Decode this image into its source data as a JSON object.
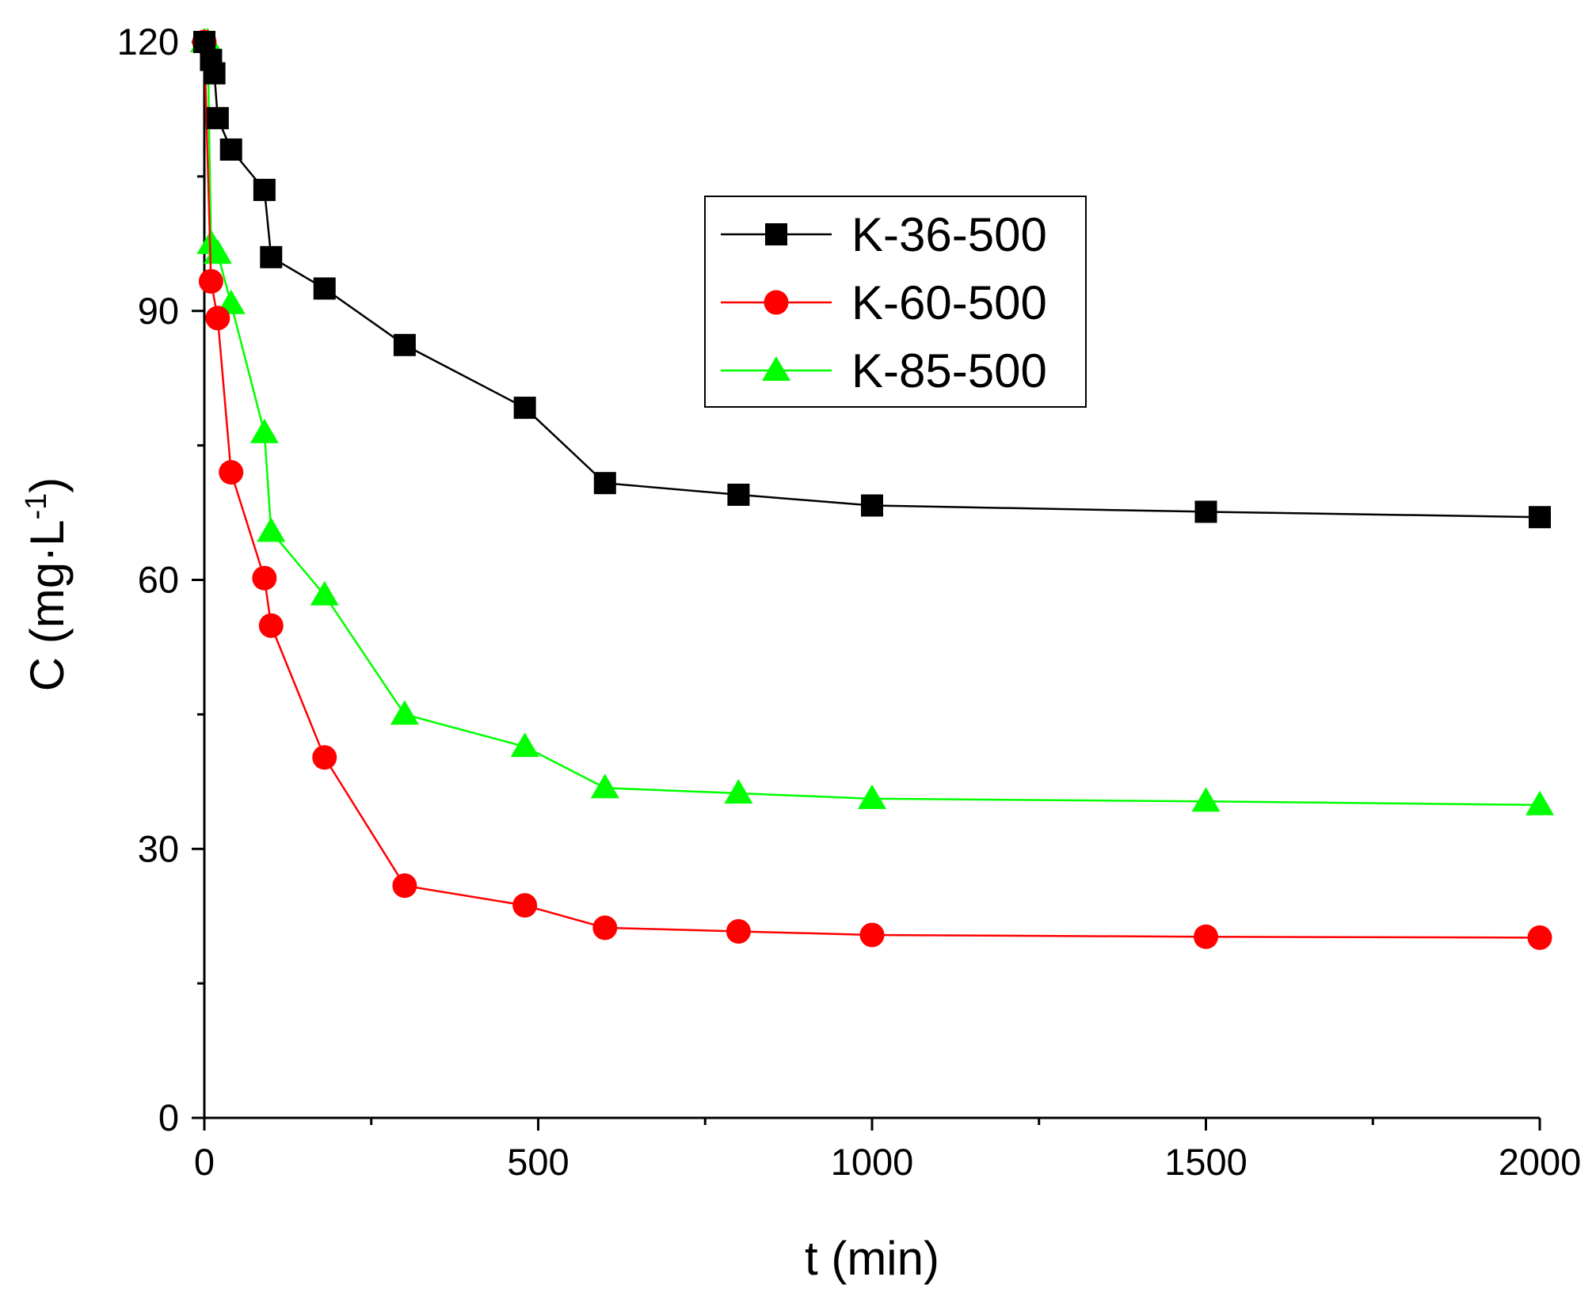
{
  "chart_data": {
    "type": "line",
    "title": "",
    "xlabel": "t (min)",
    "ylabel": {
      "base": "C (mg·L",
      "sup": "-1",
      "close": ")"
    },
    "xlim": [
      0,
      2000
    ],
    "ylim": [
      0,
      120
    ],
    "xticks": [
      0,
      500,
      1000,
      1500,
      2000
    ],
    "yticks": [
      0,
      30,
      60,
      90,
      120
    ],
    "legend_position": "upper-center",
    "grid": false,
    "series": [
      {
        "name": "K-36-500",
        "color": "#000000",
        "marker": "square",
        "x": [
          0,
          10,
          15,
          20,
          40,
          90,
          100,
          180,
          300,
          480,
          600,
          800,
          1000,
          1500,
          2000
        ],
        "y": [
          120,
          118,
          116.5,
          111.5,
          108,
          103.5,
          96,
          92.5,
          86.2,
          79.2,
          70.8,
          69.5,
          68.3,
          67.6,
          67
        ]
      },
      {
        "name": "K-60-500",
        "color": "#ff0000",
        "marker": "circle",
        "x": [
          0,
          10,
          20,
          40,
          90,
          100,
          180,
          300,
          480,
          600,
          800,
          1000,
          1500,
          2000
        ],
        "y": [
          120,
          93.3,
          89.2,
          72,
          60.2,
          54.9,
          40.2,
          25.9,
          23.7,
          21.2,
          20.8,
          20.4,
          20.2,
          20.1
        ]
      },
      {
        "name": "K-85-500",
        "color": "#00ff00",
        "marker": "triangle",
        "x": [
          0,
          5,
          10,
          20,
          40,
          90,
          100,
          180,
          300,
          480,
          600,
          800,
          1000,
          1500,
          2000
        ],
        "y": [
          120,
          120,
          97.5,
          96.4,
          90.8,
          76.4,
          65.4,
          58.3,
          45,
          41.4,
          36.8,
          36.2,
          35.6,
          35.3,
          34.9
        ]
      }
    ]
  }
}
